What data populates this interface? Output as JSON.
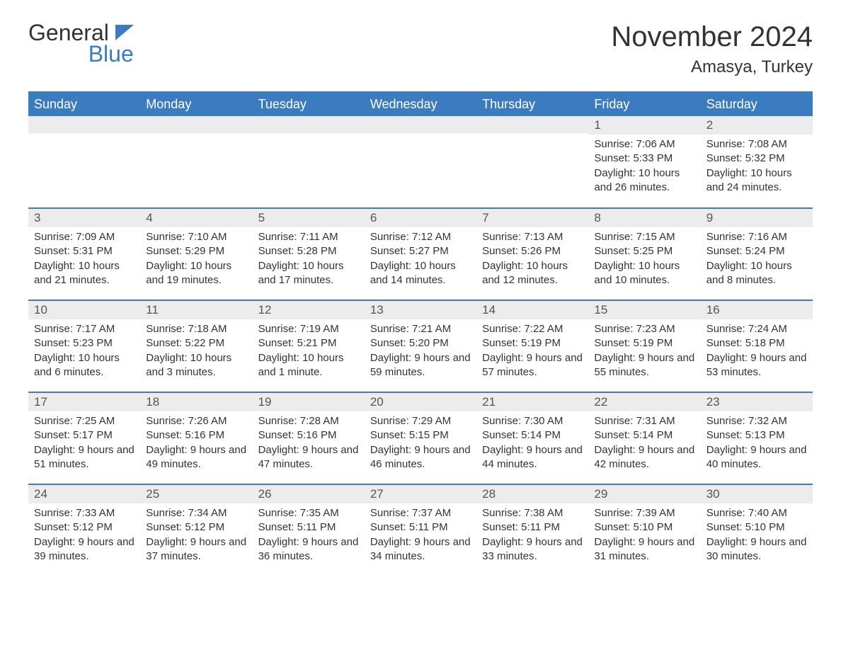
{
  "logo": {
    "text_general": "General",
    "text_blue": "Blue",
    "flag_color": "#3b7bbf"
  },
  "title": "November 2024",
  "location": "Amasya, Turkey",
  "colors": {
    "header_bg": "#3b7bbf",
    "header_text": "#ffffff",
    "day_number_bg": "#ececec",
    "border": "#3b7bbf",
    "text": "#333333"
  },
  "weekdays": [
    "Sunday",
    "Monday",
    "Tuesday",
    "Wednesday",
    "Thursday",
    "Friday",
    "Saturday"
  ],
  "weeks": [
    [
      null,
      null,
      null,
      null,
      null,
      {
        "n": "1",
        "sunrise": "7:06 AM",
        "sunset": "5:33 PM",
        "daylight": "10 hours and 26 minutes."
      },
      {
        "n": "2",
        "sunrise": "7:08 AM",
        "sunset": "5:32 PM",
        "daylight": "10 hours and 24 minutes."
      }
    ],
    [
      {
        "n": "3",
        "sunrise": "7:09 AM",
        "sunset": "5:31 PM",
        "daylight": "10 hours and 21 minutes."
      },
      {
        "n": "4",
        "sunrise": "7:10 AM",
        "sunset": "5:29 PM",
        "daylight": "10 hours and 19 minutes."
      },
      {
        "n": "5",
        "sunrise": "7:11 AM",
        "sunset": "5:28 PM",
        "daylight": "10 hours and 17 minutes."
      },
      {
        "n": "6",
        "sunrise": "7:12 AM",
        "sunset": "5:27 PM",
        "daylight": "10 hours and 14 minutes."
      },
      {
        "n": "7",
        "sunrise": "7:13 AM",
        "sunset": "5:26 PM",
        "daylight": "10 hours and 12 minutes."
      },
      {
        "n": "8",
        "sunrise": "7:15 AM",
        "sunset": "5:25 PM",
        "daylight": "10 hours and 10 minutes."
      },
      {
        "n": "9",
        "sunrise": "7:16 AM",
        "sunset": "5:24 PM",
        "daylight": "10 hours and 8 minutes."
      }
    ],
    [
      {
        "n": "10",
        "sunrise": "7:17 AM",
        "sunset": "5:23 PM",
        "daylight": "10 hours and 6 minutes."
      },
      {
        "n": "11",
        "sunrise": "7:18 AM",
        "sunset": "5:22 PM",
        "daylight": "10 hours and 3 minutes."
      },
      {
        "n": "12",
        "sunrise": "7:19 AM",
        "sunset": "5:21 PM",
        "daylight": "10 hours and 1 minute."
      },
      {
        "n": "13",
        "sunrise": "7:21 AM",
        "sunset": "5:20 PM",
        "daylight": "9 hours and 59 minutes."
      },
      {
        "n": "14",
        "sunrise": "7:22 AM",
        "sunset": "5:19 PM",
        "daylight": "9 hours and 57 minutes."
      },
      {
        "n": "15",
        "sunrise": "7:23 AM",
        "sunset": "5:19 PM",
        "daylight": "9 hours and 55 minutes."
      },
      {
        "n": "16",
        "sunrise": "7:24 AM",
        "sunset": "5:18 PM",
        "daylight": "9 hours and 53 minutes."
      }
    ],
    [
      {
        "n": "17",
        "sunrise": "7:25 AM",
        "sunset": "5:17 PM",
        "daylight": "9 hours and 51 minutes."
      },
      {
        "n": "18",
        "sunrise": "7:26 AM",
        "sunset": "5:16 PM",
        "daylight": "9 hours and 49 minutes."
      },
      {
        "n": "19",
        "sunrise": "7:28 AM",
        "sunset": "5:16 PM",
        "daylight": "9 hours and 47 minutes."
      },
      {
        "n": "20",
        "sunrise": "7:29 AM",
        "sunset": "5:15 PM",
        "daylight": "9 hours and 46 minutes."
      },
      {
        "n": "21",
        "sunrise": "7:30 AM",
        "sunset": "5:14 PM",
        "daylight": "9 hours and 44 minutes."
      },
      {
        "n": "22",
        "sunrise": "7:31 AM",
        "sunset": "5:14 PM",
        "daylight": "9 hours and 42 minutes."
      },
      {
        "n": "23",
        "sunrise": "7:32 AM",
        "sunset": "5:13 PM",
        "daylight": "9 hours and 40 minutes."
      }
    ],
    [
      {
        "n": "24",
        "sunrise": "7:33 AM",
        "sunset": "5:12 PM",
        "daylight": "9 hours and 39 minutes."
      },
      {
        "n": "25",
        "sunrise": "7:34 AM",
        "sunset": "5:12 PM",
        "daylight": "9 hours and 37 minutes."
      },
      {
        "n": "26",
        "sunrise": "7:35 AM",
        "sunset": "5:11 PM",
        "daylight": "9 hours and 36 minutes."
      },
      {
        "n": "27",
        "sunrise": "7:37 AM",
        "sunset": "5:11 PM",
        "daylight": "9 hours and 34 minutes."
      },
      {
        "n": "28",
        "sunrise": "7:38 AM",
        "sunset": "5:11 PM",
        "daylight": "9 hours and 33 minutes."
      },
      {
        "n": "29",
        "sunrise": "7:39 AM",
        "sunset": "5:10 PM",
        "daylight": "9 hours and 31 minutes."
      },
      {
        "n": "30",
        "sunrise": "7:40 AM",
        "sunset": "5:10 PM",
        "daylight": "9 hours and 30 minutes."
      }
    ]
  ],
  "labels": {
    "sunrise": "Sunrise:",
    "sunset": "Sunset:",
    "daylight": "Daylight:"
  }
}
